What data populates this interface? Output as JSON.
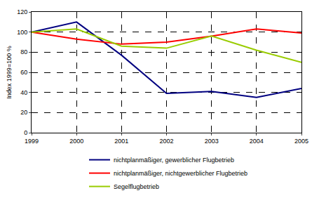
{
  "chart_data": {
    "type": "line",
    "y_label": "Index 1999=100 %",
    "x": [
      1999,
      2000,
      2001,
      2002,
      2003,
      2004,
      2005
    ],
    "series": [
      {
        "name": "nichtplanmäßiger, gewerblicher Flugbetrieb",
        "color": "#000080",
        "values": [
          100,
          110,
          77,
          39,
          41,
          35,
          44
        ]
      },
      {
        "name": "nichtplanmäßiger, nichtgewerblicher Flugbetrieb",
        "color": "#ff0000",
        "values": [
          100,
          93,
          88,
          90,
          96,
          103,
          99
        ]
      },
      {
        "name": "Segelflugbetrieb",
        "color": "#99cc00",
        "values": [
          100,
          103,
          86,
          84,
          96,
          82,
          70
        ]
      }
    ],
    "xlim": [
      1999,
      2005
    ],
    "xticks": [
      1999,
      2000,
      2001,
      2002,
      2003,
      2004,
      2005
    ],
    "ylim": [
      0,
      120
    ],
    "yticks": [
      0,
      20,
      40,
      60,
      80,
      100,
      120
    ],
    "grid": true,
    "legend": "bottom"
  }
}
